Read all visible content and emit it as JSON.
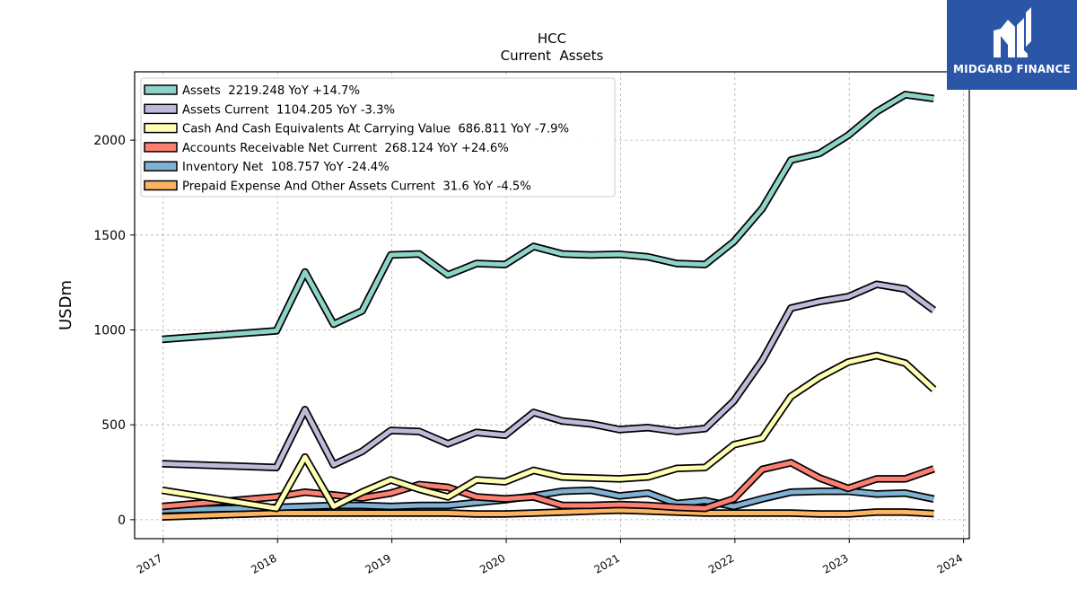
{
  "logo": {
    "text": "MIDGARD FINANCE",
    "bg_color": "#2b56a8"
  },
  "chart_data": {
    "type": "line",
    "title": "HCC",
    "subtitle": "Current  Assets",
    "xlabel": "",
    "ylabel": "USDm",
    "xlim": [
      2016.75,
      2024.05
    ],
    "ylim": [
      -100,
      2360
    ],
    "x_ticks": [
      2017,
      2018,
      2019,
      2020,
      2021,
      2022,
      2023,
      2024
    ],
    "y_ticks": [
      0,
      500,
      1000,
      1500,
      2000
    ],
    "grid": true,
    "legend_position": "top-left",
    "x": [
      2016.99,
      2017.99,
      2018.24,
      2018.49,
      2018.74,
      2018.99,
      2019.24,
      2019.49,
      2019.74,
      2019.99,
      2020.24,
      2020.49,
      2020.74,
      2020.99,
      2021.24,
      2021.49,
      2021.74,
      2021.99,
      2022.24,
      2022.49,
      2022.74,
      2022.99,
      2023.24,
      2023.49,
      2023.74
    ],
    "series": [
      {
        "name": "Assets  2219.248 YoY +14.7%",
        "color": "#8dd3c7",
        "values": [
          950,
          995,
          1305,
          1030,
          1100,
          1395,
          1400,
          1290,
          1350,
          1345,
          1440,
          1400,
          1395,
          1398,
          1385,
          1350,
          1345,
          1465,
          1640,
          1895,
          1930,
          2025,
          2150,
          2240,
          2219
        ]
      },
      {
        "name": "Assets Current  1104.205 YoY -3.3%",
        "color": "#bebada",
        "values": [
          295,
          275,
          580,
          290,
          360,
          470,
          465,
          400,
          460,
          445,
          565,
          520,
          505,
          475,
          485,
          465,
          480,
          625,
          840,
          1115,
          1150,
          1175,
          1240,
          1215,
          1104
        ]
      },
      {
        "name": "Cash And Cash Equivalents At Carrying Value  686.811 YoY -7.9%",
        "color": "#ffffb3",
        "values": [
          155,
          60,
          330,
          70,
          145,
          210,
          160,
          120,
          210,
          200,
          260,
          225,
          220,
          215,
          225,
          270,
          275,
          395,
          430,
          650,
          750,
          830,
          865,
          825,
          687
        ]
      },
      {
        "name": "Accounts Receivable Net Current  268.124 YoY +24.6%",
        "color": "#fb8072",
        "values": [
          70,
          120,
          145,
          130,
          115,
          140,
          185,
          170,
          120,
          110,
          120,
          75,
          75,
          80,
          75,
          65,
          60,
          110,
          265,
          300,
          220,
          165,
          215,
          215,
          268
        ]
      },
      {
        "name": "Inventory Net  108.757 YoY -24.4%",
        "color": "#80b1d3",
        "values": [
          50,
          65,
          70,
          75,
          75,
          70,
          75,
          75,
          90,
          105,
          125,
          150,
          155,
          125,
          140,
          85,
          100,
          70,
          110,
          145,
          150,
          150,
          135,
          140,
          109
        ]
      },
      {
        "name": "Prepaid Expense And Other Assets Current  31.6 YoY -4.5%",
        "color": "#fdb462",
        "values": [
          15,
          35,
          35,
          35,
          35,
          35,
          35,
          35,
          30,
          30,
          35,
          40,
          45,
          50,
          45,
          40,
          35,
          35,
          35,
          35,
          30,
          30,
          40,
          40,
          32
        ]
      }
    ]
  }
}
